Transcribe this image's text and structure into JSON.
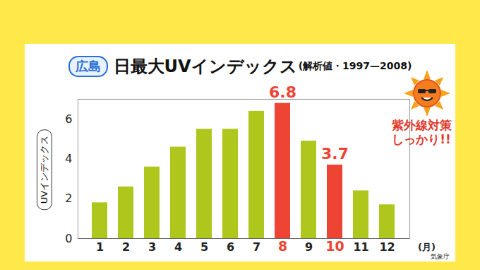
{
  "chart_data": {
    "type": "bar",
    "location_label": "広島",
    "title": "日最大UVインデックス",
    "subtitle": "(解析値・1997—2008)",
    "y_label": "UVインデックス",
    "x_label": "(月)",
    "source": "気象庁",
    "annotation": "紫外線対策しっかり!!",
    "categories": [
      "1",
      "2",
      "3",
      "4",
      "5",
      "6",
      "7",
      "8",
      "9",
      "10",
      "11",
      "12"
    ],
    "values": [
      1.8,
      2.6,
      3.6,
      4.6,
      5.5,
      5.5,
      6.4,
      6.8,
      4.9,
      3.7,
      2.4,
      1.7
    ],
    "colors": [
      "#afc61c",
      "#afc61c",
      "#afc61c",
      "#afc61c",
      "#afc61c",
      "#afc61c",
      "#afc61c",
      "#ee4433",
      "#afc61c",
      "#ee4433",
      "#afc61c",
      "#afc61c"
    ],
    "value_labels": [
      null,
      null,
      null,
      null,
      null,
      null,
      null,
      "6.8",
      null,
      "3.7",
      null,
      null
    ],
    "data_labels": true,
    "ylim": [
      0,
      7
    ],
    "yticks": [
      0,
      2,
      4,
      6
    ],
    "grid": false
  }
}
